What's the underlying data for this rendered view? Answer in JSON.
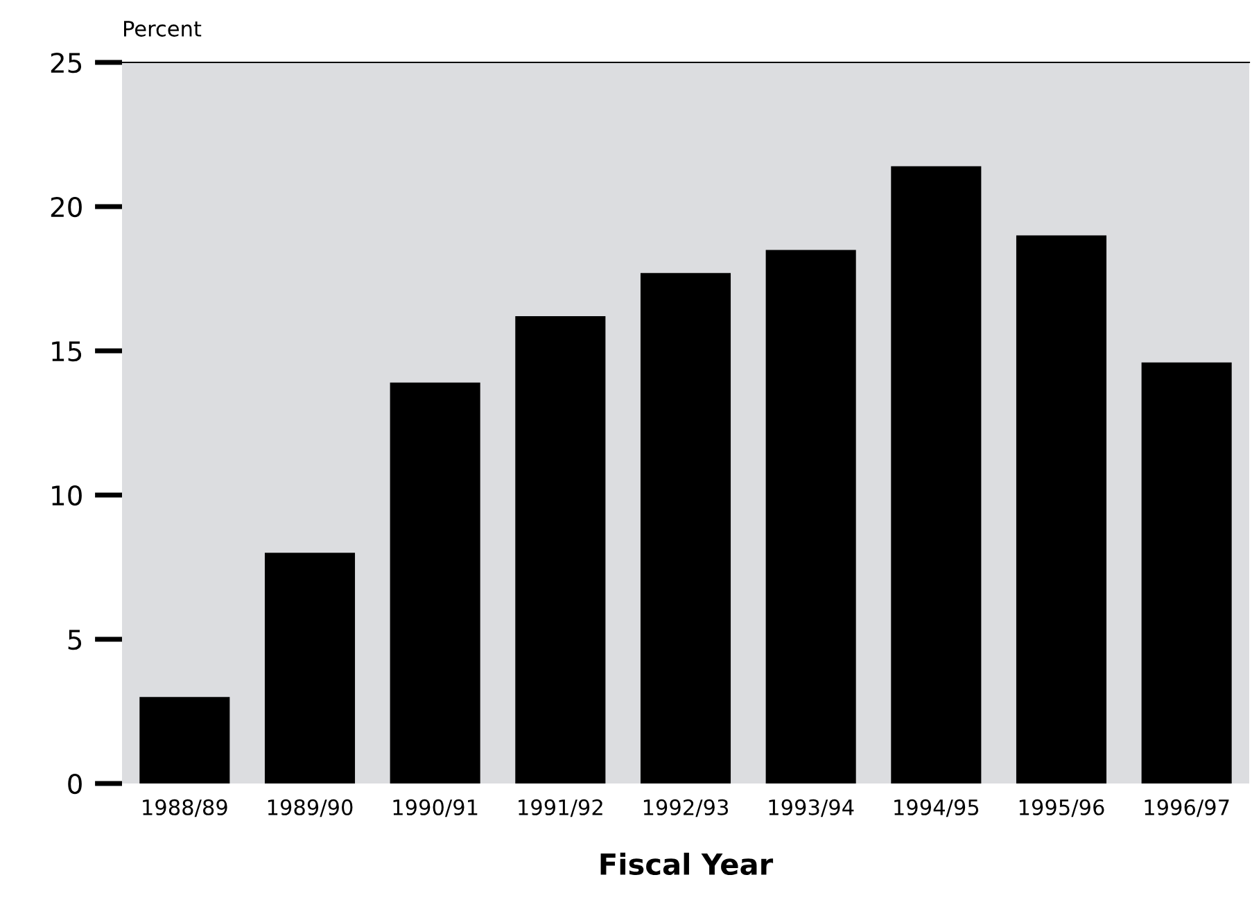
{
  "chart_data": {
    "type": "bar",
    "ylabel": "Percent",
    "xlabel": "Fiscal Year",
    "categories": [
      "1988/89",
      "1989/90",
      "1990/91",
      "1991/92",
      "1992/93",
      "1993/94",
      "1994/95",
      "1995/96",
      "1996/97"
    ],
    "values": [
      3.0,
      8.0,
      13.9,
      16.2,
      17.7,
      18.5,
      21.4,
      19.0,
      14.6
    ],
    "color": "#000000",
    "ylim": [
      0,
      25
    ],
    "yticks": [
      0,
      5,
      10,
      15,
      20,
      25
    ],
    "grid": false
  }
}
